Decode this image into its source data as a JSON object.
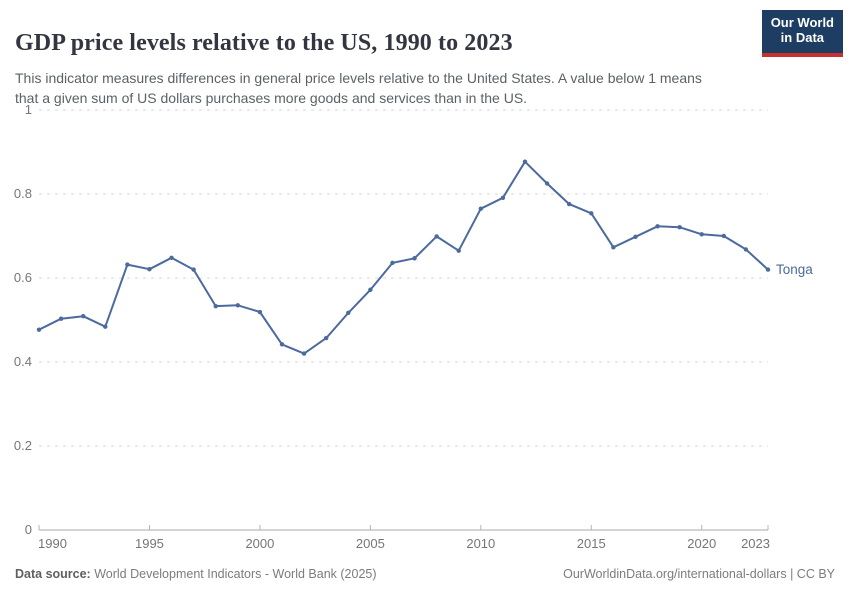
{
  "header": {
    "title": "GDP price levels relative to the US, 1990 to 2023",
    "subtitle": "This indicator measures differences in general price levels relative to the United States. A value below 1 means\nthat a given sum of US dollars purchases more goods and services than in the US.",
    "logo": {
      "line1": "Our World",
      "line2": "in Data"
    }
  },
  "footer": {
    "source_label": "Data source:",
    "source_text": " World Development Indicators - World Bank (2025)",
    "attribution": "OurWorldinData.org/international-dollars | CC BY"
  },
  "colors": {
    "line": "#4C6A9C",
    "grid": "#d9d9d9",
    "axis": "#a8a8a8",
    "tick_mark": "#b5b5b5",
    "tick_label": "#73777b",
    "logo_bg": "#1d3d63",
    "logo_stripe": "#cb3030"
  },
  "chart_data": {
    "type": "line",
    "title": "GDP price levels relative to the US, 1990 to 2023",
    "xlabel": "",
    "ylabel": "",
    "xlim": [
      1990,
      2023
    ],
    "ylim": [
      0,
      1
    ],
    "xticks": [
      1990,
      1995,
      2000,
      2005,
      2010,
      2015,
      2020,
      2023
    ],
    "yticks": [
      0,
      0.2,
      0.4,
      0.6,
      0.8,
      1
    ],
    "grid": "horizontal-dashed",
    "legend_position": "end-of-line-label",
    "series": [
      {
        "name": "Tonga",
        "color": "#4C6A9C",
        "x": [
          1990,
          1991,
          1992,
          1993,
          1994,
          1995,
          1996,
          1997,
          1998,
          1999,
          2000,
          2001,
          2002,
          2003,
          2004,
          2005,
          2006,
          2007,
          2008,
          2009,
          2010,
          2011,
          2012,
          2013,
          2014,
          2015,
          2016,
          2017,
          2018,
          2019,
          2020,
          2021,
          2022,
          2023
        ],
        "values": [
          0.477,
          0.503,
          0.509,
          0.484,
          0.632,
          0.621,
          0.648,
          0.62,
          0.533,
          0.535,
          0.519,
          0.442,
          0.42,
          0.457,
          0.517,
          0.572,
          0.636,
          0.647,
          0.699,
          0.665,
          0.765,
          0.791,
          0.877,
          0.825,
          0.776,
          0.754,
          0.673,
          0.698,
          0.723,
          0.721,
          0.704,
          0.7,
          0.668,
          0.62
        ]
      }
    ]
  }
}
